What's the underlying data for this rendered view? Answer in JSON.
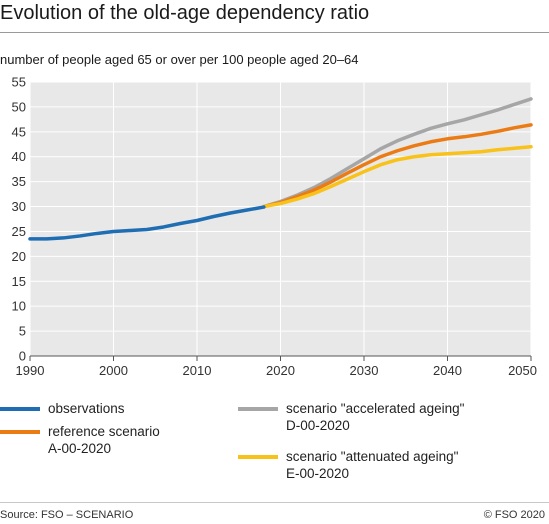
{
  "header": {
    "title": "Evolution of the old-age dependency ratio",
    "subtitle": "number of people aged 65 or over per 100 people aged 20–64"
  },
  "footer": {
    "source": "Source: FSO – SCENARIO",
    "copyright": "© FSO 2020"
  },
  "chart_data": {
    "type": "line",
    "title": "Evolution of the old-age dependency ratio",
    "subtitle": "number of people aged 65 or over per 100 people aged 20–64",
    "xlim": [
      1990,
      2050
    ],
    "ylim": [
      0,
      55
    ],
    "x_ticks": [
      1990,
      2000,
      2010,
      2020,
      2030,
      2040,
      2050
    ],
    "y_ticks": [
      0,
      5,
      10,
      15,
      20,
      25,
      30,
      35,
      40,
      45,
      50,
      55
    ],
    "grid": true,
    "legend_position": "bottom",
    "background": "#e8e8e8",
    "series": [
      {
        "name": "observations",
        "color": "#1f6db3",
        "x": [
          1990,
          1992,
          1994,
          1996,
          1998,
          2000,
          2002,
          2004,
          2006,
          2008,
          2010,
          2012,
          2014,
          2016,
          2018
        ],
        "y": [
          23.5,
          23.5,
          23.7,
          24.1,
          24.6,
          25.0,
          25.2,
          25.4,
          25.9,
          26.6,
          27.2,
          28.0,
          28.7,
          29.3,
          29.9
        ]
      },
      {
        "name": "scenario \"accelerated ageing\"\nD-00-2020",
        "color": "#a6a6a6",
        "x": [
          2018,
          2020,
          2022,
          2024,
          2026,
          2028,
          2030,
          2032,
          2034,
          2036,
          2038,
          2040,
          2042,
          2044,
          2046,
          2048,
          2050
        ],
        "y": [
          30.0,
          31.0,
          32.3,
          33.8,
          35.6,
          37.6,
          39.6,
          41.6,
          43.2,
          44.5,
          45.7,
          46.6,
          47.4,
          48.4,
          49.4,
          50.5,
          51.6
        ]
      },
      {
        "name": "reference scenario\nA-00-2020",
        "color": "#eb7c15",
        "x": [
          2018,
          2020,
          2022,
          2024,
          2026,
          2028,
          2030,
          2032,
          2034,
          2036,
          2038,
          2040,
          2042,
          2044,
          2046,
          2048,
          2050
        ],
        "y": [
          30.0,
          30.8,
          32.0,
          33.3,
          34.9,
          36.7,
          38.4,
          40.0,
          41.2,
          42.2,
          43.0,
          43.6,
          44.0,
          44.5,
          45.1,
          45.8,
          46.4
        ]
      },
      {
        "name": "scenario \"attenuated ageing\"\nE-00-2020",
        "color": "#f8c21a",
        "x": [
          2018,
          2020,
          2022,
          2024,
          2026,
          2028,
          2030,
          2032,
          2034,
          2036,
          2038,
          2040,
          2042,
          2044,
          2046,
          2048,
          2050
        ],
        "y": [
          30.0,
          30.6,
          31.5,
          32.6,
          34.0,
          35.5,
          37.0,
          38.4,
          39.4,
          40.0,
          40.4,
          40.6,
          40.8,
          41.0,
          41.4,
          41.7,
          42.0
        ]
      }
    ]
  },
  "legend": {
    "items": [
      {
        "label": "observations",
        "color": "#1f6db3"
      },
      {
        "label": "scenario \"accelerated ageing\"\nD-00-2020",
        "color": "#a6a6a6"
      },
      {
        "label": "reference scenario\nA-00-2020",
        "color": "#eb7c15"
      },
      {
        "label": "scenario \"attenuated ageing\"\nE-00-2020",
        "color": "#f8c21a"
      }
    ]
  }
}
